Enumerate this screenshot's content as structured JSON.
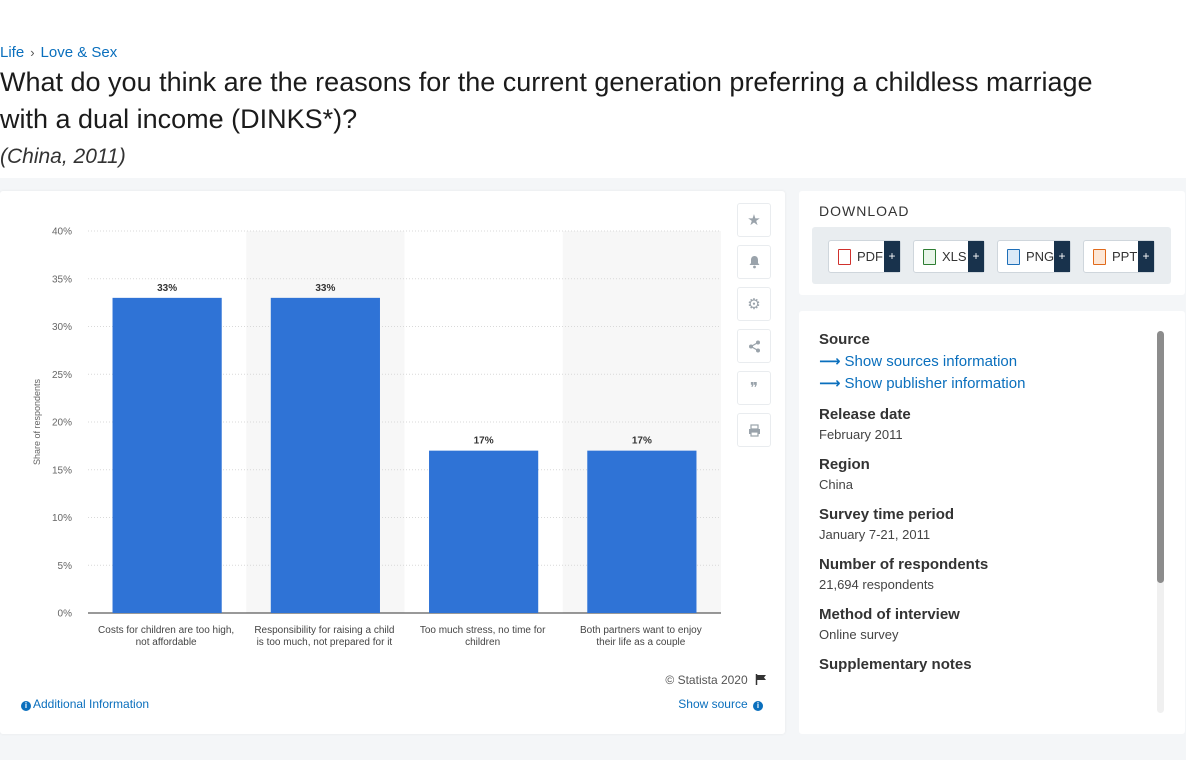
{
  "breadcrumb": {
    "level1": "Life",
    "sep": "›",
    "level2": "Love & Sex"
  },
  "title": "What do you think are the reasons for the current generation preferring a childless marriage with a dual income (DINKS*)?",
  "subtitle": "(China, 2011)",
  "chart_footer": {
    "copyright": "© Statista 2020",
    "additional_info": "Additional Information",
    "show_source": "Show source"
  },
  "download": {
    "title": "DOWNLOAD",
    "buttons": [
      {
        "label": "PDF",
        "color": "#d0312d"
      },
      {
        "label": "XLS",
        "color": "#2e7d32"
      },
      {
        "label": "PNG",
        "color": "#1e6fb8"
      },
      {
        "label": "PPT",
        "color": "#e06a1b"
      }
    ],
    "plus": "+"
  },
  "info": {
    "source_label": "Source",
    "show_sources": "Show sources information",
    "show_publisher": "Show publisher information",
    "release_label": "Release date",
    "release_value": "February 2011",
    "region_label": "Region",
    "region_value": "China",
    "survey_label": "Survey time period",
    "survey_value": "January 7-21, 2011",
    "respondents_label": "Number of respondents",
    "respondents_value": "21,694 respondents",
    "method_label": "Method of interview",
    "method_value": "Online survey",
    "notes_label": "Supplementary notes"
  },
  "chart_data": {
    "type": "bar",
    "categories": [
      [
        "Costs for children are too high,",
        "not affordable"
      ],
      [
        "Responsibility for raising a child",
        "is too much, not prepared for it"
      ],
      [
        "Too much stress, no time for",
        "children"
      ],
      [
        "Both partners want to enjoy",
        "their life as a couple"
      ]
    ],
    "values": [
      33,
      33,
      17,
      17
    ],
    "data_labels": [
      "33%",
      "33%",
      "17%",
      "17%"
    ],
    "ylabel": "Share of respondents",
    "ylim": [
      0,
      40
    ],
    "yticks": [
      0,
      5,
      10,
      15,
      20,
      25,
      30,
      35,
      40
    ],
    "ytick_suffix": "%",
    "bar_color": "#2f73d6",
    "grid": true
  }
}
